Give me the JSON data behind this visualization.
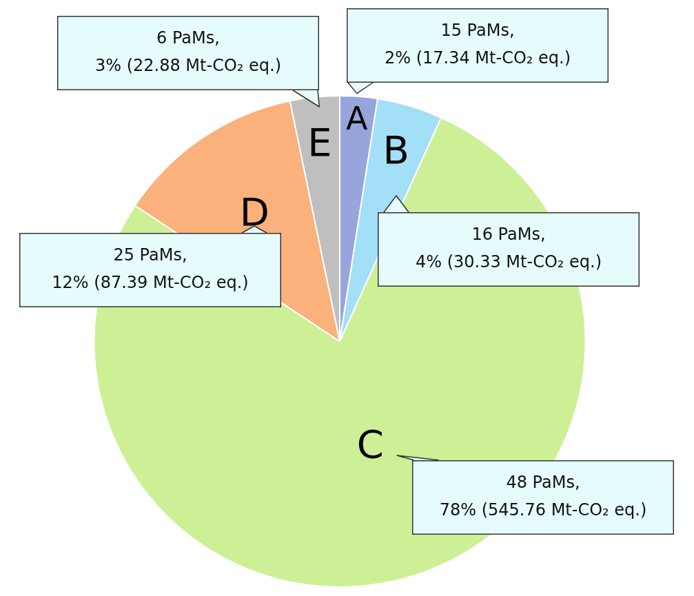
{
  "chart_data": {
    "type": "pie",
    "categories": [
      "A",
      "B",
      "C",
      "D",
      "E"
    ],
    "values": [
      17.34,
      30.33,
      545.76,
      87.39,
      22.88
    ],
    "colors": [
      "#98a4dc",
      "#a3dff6",
      "#cdf096",
      "#fbb17b",
      "#bfbfbf"
    ],
    "value_labels": [
      "15 PaMs,\n2% (17.34 Mt-CO₂ eq.)",
      "16 PaMs,\n4% (30.33 Mt-CO₂ eq.)",
      "48 PaMs,\n78% (545.76 Mt-CO₂ eq.)",
      "25 PaMs,\n12% (87.39 Mt-CO₂ eq.)",
      "6 PaMs,\n3% (22.88 Mt-CO₂ eq.)"
    ],
    "legend": false
  }
}
